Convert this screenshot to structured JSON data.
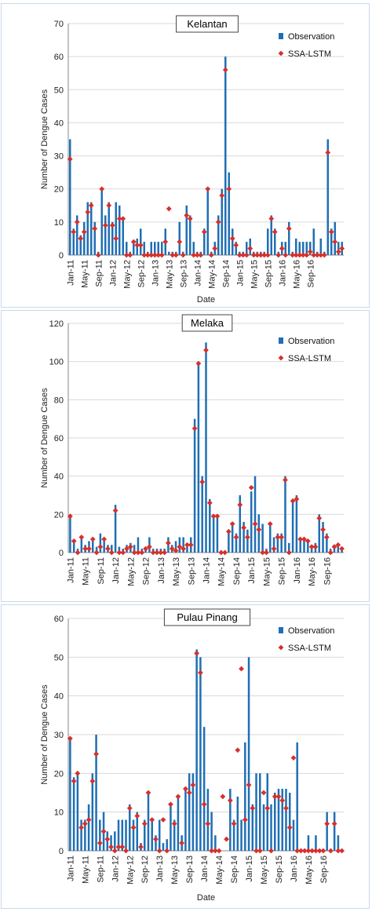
{
  "colors": {
    "bar": "#1f6fb4",
    "marker": "#d7302b",
    "panel_border": "#c9d9ea",
    "grid": "#d9d9d9"
  },
  "chart_data": [
    {
      "type": "bar",
      "title": "Kelantan",
      "xlabel": "Date",
      "ylabel": "Number of Dengue Cases",
      "ylim": [
        0,
        70
      ],
      "yticks": [
        "0",
        "10",
        "20",
        "30",
        "40",
        "50",
        "60",
        "70"
      ],
      "xticks": [
        "Jan-11",
        "May-11",
        "Sep-11",
        "Jan-12",
        "May-12",
        "Sep-12",
        "Jan-13",
        "May-13",
        "Sep-13",
        "Jan-14",
        "May-14",
        "Sep-14",
        "Jan-15",
        "May-15",
        "Sep-15",
        "Jan-16",
        "May-16",
        "Sep-16"
      ],
      "legend": [
        "Observation",
        "SSA-LSTM"
      ],
      "legend_position": "top-right",
      "series": [
        {
          "name": "Observation",
          "kind": "bar",
          "values": [
            35,
            8,
            12,
            6,
            10,
            16,
            16,
            10,
            1,
            20,
            12,
            16,
            10,
            16,
            15,
            11,
            4,
            1,
            4,
            5,
            8,
            4,
            1,
            4,
            4,
            4,
            4,
            8,
            1,
            1,
            1,
            10,
            1,
            15,
            12,
            4,
            1,
            1,
            8,
            20,
            1,
            4,
            12,
            20,
            60,
            25,
            8,
            4,
            1,
            1,
            4,
            5,
            1,
            1,
            1,
            1,
            8,
            12,
            8,
            1,
            4,
            4,
            10,
            1,
            5,
            4,
            4,
            4,
            4,
            8,
            1,
            5,
            1,
            35,
            8,
            10,
            4,
            4
          ]
        },
        {
          "name": "SSA-LSTM",
          "kind": "marker",
          "values": [
            29,
            7,
            10,
            5,
            7,
            13,
            15,
            8,
            0,
            20,
            9,
            15,
            9,
            5,
            11,
            11,
            0,
            0,
            4,
            3,
            3,
            0,
            0,
            0,
            0,
            0,
            0,
            4,
            14,
            0,
            0,
            4,
            0,
            12,
            11,
            0,
            0,
            0,
            7,
            20,
            0,
            2,
            10,
            18,
            56,
            20,
            5,
            3,
            0,
            0,
            0,
            2,
            0,
            0,
            0,
            0,
            0,
            11,
            7,
            0,
            2,
            0,
            8,
            0,
            0,
            0,
            0,
            0,
            1,
            0,
            0,
            0,
            0,
            31,
            7,
            4,
            1,
            2
          ]
        }
      ]
    },
    {
      "type": "bar",
      "title": "Melaka",
      "xlabel": "",
      "ylabel": "Number of Dengue Cases",
      "ylim": [
        0,
        120
      ],
      "yticks": [
        "0",
        "20",
        "40",
        "60",
        "80",
        "100",
        "120"
      ],
      "xticks": [
        "Jan-11",
        "May-11",
        "Sep-11",
        "Jan-12",
        "May-12",
        "Sep-12",
        "Jan-13",
        "May-13",
        "Sep-13",
        "Jan-14",
        "May-14",
        "Sep-14",
        "Jan-15",
        "May-15",
        "Sep-15",
        "Jan-16",
        "May-16",
        "Sep-16"
      ],
      "legend": [
        "Observation",
        "SSA-LSTM"
      ],
      "legend_position": "top-right",
      "series": [
        {
          "name": "Observation",
          "kind": "bar",
          "values": [
            20,
            7,
            2,
            8,
            4,
            6,
            8,
            3,
            10,
            6,
            4,
            4,
            25,
            3,
            2,
            4,
            5,
            4,
            8,
            2,
            2,
            8,
            2,
            2,
            2,
            2,
            8,
            4,
            6,
            8,
            8,
            5,
            8,
            70,
            99,
            40,
            110,
            28,
            20,
            20,
            1,
            1,
            12,
            16,
            10,
            30,
            16,
            12,
            32,
            40,
            20,
            15,
            2,
            16,
            8,
            10,
            10,
            40,
            5,
            28,
            30,
            7,
            7,
            7,
            4,
            5,
            20,
            16,
            10,
            2,
            4,
            5,
            3
          ]
        },
        {
          "name": "SSA-LSTM",
          "kind": "marker",
          "values": [
            19,
            6,
            0,
            8,
            2,
            2,
            7,
            0,
            3,
            7,
            2,
            0,
            22,
            0,
            0,
            2,
            3,
            0,
            0,
            0,
            2,
            3,
            0,
            0,
            0,
            0,
            5,
            2,
            1,
            3,
            2,
            4,
            4,
            65,
            99,
            37,
            106,
            26,
            19,
            19,
            0,
            0,
            11,
            15,
            8,
            25,
            13,
            8,
            34,
            15,
            12,
            0,
            0,
            15,
            2,
            8,
            8,
            38,
            0,
            27,
            28,
            7,
            7,
            6,
            3,
            3,
            18,
            12,
            8,
            0,
            3,
            4,
            2
          ]
        }
      ]
    },
    {
      "type": "bar",
      "title": "Pulau Pinang",
      "xlabel": "Date",
      "ylabel": "Number of Dengue Cases",
      "ylim": [
        0,
        60
      ],
      "yticks": [
        "0",
        "10",
        "20",
        "30",
        "40",
        "50",
        "60"
      ],
      "xticks": [
        "Jan-11",
        "May-11",
        "Sep-11",
        "Jan-12",
        "May-12",
        "Sep-12",
        "Jan-13",
        "May-13",
        "Sep-13",
        "Jan-14",
        "May-14",
        "Sep-14",
        "Jan-15",
        "May-15",
        "Sep-15",
        "Jan-16",
        "May-16",
        "Sep-16"
      ],
      "legend": [
        "Observation",
        "SSA-LSTM"
      ],
      "legend_position": "top-right",
      "series": [
        {
          "name": "Observation",
          "kind": "bar",
          "values": [
            29,
            19,
            20,
            8,
            8,
            12,
            20,
            30,
            8,
            10,
            5,
            4,
            5,
            8,
            8,
            8,
            12,
            8,
            10,
            2,
            8,
            15,
            8,
            4,
            8,
            2,
            3,
            12,
            8,
            14,
            4,
            16,
            20,
            20,
            52,
            50,
            32,
            16,
            10,
            4,
            0,
            0,
            0,
            16,
            8,
            14,
            8,
            28,
            50,
            12,
            20,
            20,
            12,
            20,
            12,
            15,
            16,
            16,
            16,
            15,
            8,
            28,
            0,
            0,
            4,
            0,
            4,
            0,
            0,
            10,
            0,
            10,
            4,
            0
          ]
        },
        {
          "name": "SSA-LSTM",
          "kind": "marker",
          "values": [
            29,
            18,
            20,
            6,
            7,
            8,
            18,
            25,
            2,
            5,
            3,
            1,
            0,
            1,
            1,
            0,
            11,
            6,
            9,
            1,
            7,
            15,
            8,
            3,
            0,
            8,
            0,
            12,
            7,
            14,
            2,
            16,
            15,
            17,
            51,
            46,
            12,
            7,
            0,
            0,
            0,
            14,
            3,
            13,
            7,
            26,
            47,
            8,
            17,
            11,
            0,
            0,
            15,
            11,
            0,
            14,
            14,
            13,
            11,
            6,
            24,
            0,
            0,
            0,
            0,
            0,
            0,
            0,
            0,
            7,
            0,
            7,
            0,
            0
          ]
        }
      ]
    }
  ]
}
